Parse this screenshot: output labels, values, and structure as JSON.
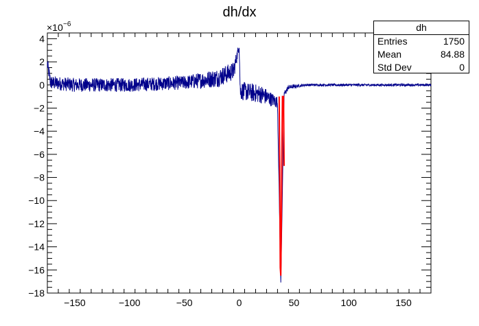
{
  "chart_data": {
    "type": "line",
    "title": "dh/dx",
    "xlim": [
      -175,
      175
    ],
    "ylim": [
      -18,
      4.5
    ],
    "y_exponent_label": "×10",
    "y_exponent_power": "−6",
    "x_ticks": [
      -150,
      -100,
      -50,
      0,
      50,
      100,
      150
    ],
    "x_tick_labels": [
      "−150",
      "−100",
      "−50",
      "0",
      "50",
      "100",
      "150"
    ],
    "y_ticks": [
      4,
      2,
      0,
      -2,
      -4,
      -6,
      -8,
      -10,
      -12,
      -14,
      -16,
      -18
    ],
    "y_tick_labels": [
      "4",
      "2",
      "0",
      "−2",
      "−4",
      "−6",
      "−8",
      "−10",
      "−12",
      "−14",
      "−16",
      "−18"
    ],
    "series": [
      {
        "color": "#00008b",
        "envelope": [
          {
            "x": -175,
            "y": 1.8,
            "noise": 0.6
          },
          {
            "x": -172,
            "y": 0.2,
            "noise": 0.6
          },
          {
            "x": -150,
            "y": 0.0,
            "noise": 0.6
          },
          {
            "x": -100,
            "y": 0.0,
            "noise": 0.6
          },
          {
            "x": -50,
            "y": 0.2,
            "noise": 0.6
          },
          {
            "x": -20,
            "y": 0.6,
            "noise": 0.8
          },
          {
            "x": -5,
            "y": 1.2,
            "noise": 0.8
          },
          {
            "x": 0,
            "y": 3.4,
            "noise": 0.3
          },
          {
            "x": 1,
            "y": -0.5,
            "noise": 0.8
          },
          {
            "x": 20,
            "y": -0.8,
            "noise": 0.8
          },
          {
            "x": 35,
            "y": -1.5,
            "noise": 0.5
          },
          {
            "x": 38,
            "y": -17.2,
            "noise": 0.2
          },
          {
            "x": 41,
            "y": -0.8,
            "noise": 0.3
          },
          {
            "x": 45,
            "y": -0.2,
            "noise": 0.2
          },
          {
            "x": 60,
            "y": 0.0,
            "noise": 0.1
          },
          {
            "x": 100,
            "y": 0.0,
            "noise": 0.1
          },
          {
            "x": 175,
            "y": 0.0,
            "noise": 0.1
          }
        ]
      },
      {
        "color": "#ff0000",
        "points": [
          {
            "x": 36.5,
            "y": -1.0
          },
          {
            "x": 37.0,
            "y": -6.8
          },
          {
            "x": 37.5,
            "y": -15.8
          },
          {
            "x": 38.0,
            "y": -16.5
          },
          {
            "x": 38.5,
            "y": -12.0
          },
          {
            "x": 39.0,
            "y": -6.0
          },
          {
            "x": 39.5,
            "y": -1.0
          },
          {
            "x": 40.5,
            "y": -1.0
          },
          {
            "x": 41.0,
            "y": -7.0
          }
        ]
      }
    ]
  },
  "stats": {
    "name": "dh",
    "entries_label": "Entries",
    "entries_value": "1750",
    "mean_label": "Mean",
    "mean_value": "84.88",
    "stddev_label": "Std Dev",
    "stddev_value": "0"
  }
}
